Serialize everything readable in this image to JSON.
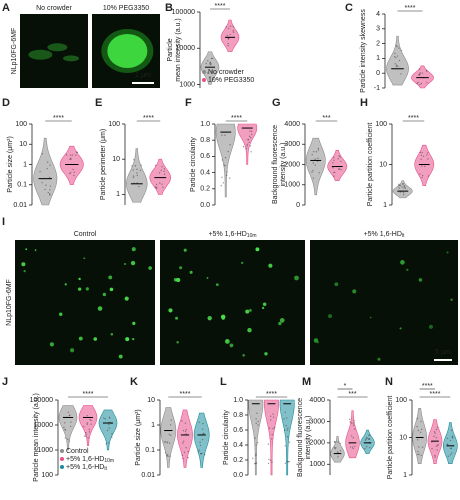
{
  "chart_data": [
    {
      "type": "image",
      "label": "A",
      "side_label": "NLp10FG-6MF",
      "captions": [
        {
          "text": "No crowder"
        },
        {
          "text": "10% PEG3350"
        }
      ],
      "scale_bar": "1 μm"
    },
    {
      "type": "violin",
      "label": "B",
      "ylabel": [
        "Particle",
        "mean intensity (a.u.)"
      ],
      "log": true,
      "ylim": [
        800,
        100000
      ],
      "yticks": [
        1000,
        10000,
        100000
      ],
      "significance": [
        "****"
      ],
      "groups": [
        {
          "name": "No crowder",
          "color": "#8c8c8c",
          "min": 1000,
          "median": 3000,
          "max": 8000
        },
        {
          "name": "10% PEG3350",
          "color": "#e8508a",
          "min": 8000,
          "median": 20000,
          "max": 60000
        }
      ]
    },
    {
      "type": "violin",
      "label": "C",
      "ylabel": [
        "Particle intensity skewness"
      ],
      "log": false,
      "ylim": [
        -1,
        4
      ],
      "yticks": [
        -1,
        0,
        1,
        2,
        3,
        4
      ],
      "significance": [
        "****"
      ],
      "groups": [
        {
          "color": "#8c8c8c",
          "min": -0.8,
          "median": 0.3,
          "max": 2.5
        },
        {
          "color": "#e8508a",
          "min": -1,
          "median": -0.3,
          "max": 0.5
        }
      ]
    },
    {
      "type": "violin",
      "label": "D",
      "ylabel": [
        "Particle size (μm²)"
      ],
      "log": true,
      "ylim": [
        0.01,
        100
      ],
      "yticks": [
        0.01,
        0.1,
        1,
        10,
        100
      ],
      "significance": [
        "****"
      ],
      "groups": [
        {
          "color": "#8c8c8c",
          "min": 0.01,
          "median": 0.2,
          "max": 20
        },
        {
          "color": "#e8508a",
          "min": 0.1,
          "median": 1,
          "max": 8
        }
      ]
    },
    {
      "type": "violin",
      "label": "E",
      "ylabel": [
        "Particle perimeter (μm)"
      ],
      "log": true,
      "ylim": [
        0.5,
        100
      ],
      "yticks": [
        1,
        10,
        100
      ],
      "significance": [
        "****"
      ],
      "groups": [
        {
          "color": "#8c8c8c",
          "min": 0.6,
          "median": 2,
          "max": 20
        },
        {
          "color": "#e8508a",
          "min": 1,
          "median": 3,
          "max": 10
        }
      ]
    },
    {
      "type": "violin",
      "label": "F",
      "ylabel": [
        "Particle circularity"
      ],
      "log": false,
      "ylim": [
        0,
        1
      ],
      "yticks": [
        {
          "value": 0,
          "label": "0.0"
        },
        0.2,
        0.4,
        0.6,
        0.8,
        {
          "value": 1,
          "label": "1.0"
        }
      ],
      "significance": [
        "****"
      ],
      "groups": [
        {
          "color": "#8c8c8c",
          "min": 0.1,
          "median": 0.9,
          "max": 1
        },
        {
          "color": "#e8508a",
          "min": 0.5,
          "median": 0.95,
          "max": 1
        }
      ]
    },
    {
      "type": "violin",
      "label": "G",
      "ylabel": [
        "Background fluorescence",
        "intensity (a.u.)"
      ],
      "log": false,
      "ylim": [
        0,
        4000
      ],
      "yticks": [
        0,
        1000,
        2000,
        3000,
        4000
      ],
      "significance": [
        "***"
      ],
      "groups": [
        {
          "color": "#8c8c8c",
          "min": 500,
          "median": 2200,
          "max": 3300
        },
        {
          "color": "#e8508a",
          "min": 1200,
          "median": 1900,
          "max": 2700
        }
      ]
    },
    {
      "type": "violin",
      "label": "H",
      "ylabel": [
        "Particle partition coefficient"
      ],
      "log": true,
      "ylim": [
        1,
        100
      ],
      "yticks": [
        1,
        10,
        100
      ],
      "significance": [
        "****"
      ],
      "groups": [
        {
          "color": "#8c8c8c",
          "min": 1.5,
          "median": 2.2,
          "max": 4
        },
        {
          "color": "#e8508a",
          "min": 3,
          "median": 10,
          "max": 30
        }
      ]
    },
    {
      "type": "image",
      "label": "I",
      "side_label": "NLp10FG-6MF",
      "captions": [
        {
          "text": "Control"
        },
        {
          "text": "+5% 1,6-HD",
          "sub": "10m"
        },
        {
          "text": "+5% 1,6-HD",
          "sub": "lt"
        }
      ],
      "scale_bar": "5 μm"
    },
    {
      "type": "violin",
      "label": "J",
      "ylabel": [
        "Particle mean intensity (a.u.)"
      ],
      "log": true,
      "ylim": [
        100,
        100000
      ],
      "yticks": [
        100,
        1000,
        10000,
        100000
      ],
      "significance": [
        "****"
      ],
      "groups": [
        {
          "name": "Control",
          "color": "#8c8c8c",
          "min": 1000,
          "median": 20000,
          "max": 60000
        },
        {
          "name": "+5% 1,6-HD",
          "sub": "10m",
          "color": "#e8508a",
          "min": 1500,
          "median": 20000,
          "max": 60000
        },
        {
          "name": "+5% 1,6-HD",
          "sub": "lt",
          "color": "#1b8c9c",
          "min": 1000,
          "median": 12000,
          "max": 40000
        }
      ]
    },
    {
      "type": "violin",
      "label": "K",
      "ylabel": [
        "Particle size (μm²)"
      ],
      "log": true,
      "ylim": [
        0.01,
        10
      ],
      "yticks": [
        0.01,
        0.1,
        1,
        10
      ],
      "significance": [
        "****"
      ],
      "groups": [
        {
          "color": "#8c8c8c",
          "min": 0.02,
          "median": 0.6,
          "max": 5
        },
        {
          "color": "#e8508a",
          "min": 0.02,
          "median": 0.4,
          "max": 4
        },
        {
          "color": "#1b8c9c",
          "min": 0.02,
          "median": 0.4,
          "max": 3
        }
      ]
    },
    {
      "type": "violin",
      "label": "L",
      "ylabel": [
        "Particle circularity"
      ],
      "log": false,
      "ylim": [
        0,
        1
      ],
      "yticks": [
        {
          "value": 0,
          "label": "0.0"
        },
        0.2,
        0.4,
        0.6,
        0.8,
        {
          "value": 1,
          "label": "1.0"
        }
      ],
      "significance": [
        "****"
      ],
      "groups": [
        {
          "color": "#8c8c8c",
          "min": 0,
          "median": 0.95,
          "max": 1
        },
        {
          "color": "#e8508a",
          "min": 0,
          "median": 0.95,
          "max": 1
        },
        {
          "color": "#1b8c9c",
          "min": 0,
          "median": 0.95,
          "max": 1
        }
      ]
    },
    {
      "type": "violin",
      "label": "M",
      "ylabel": [
        "Background fluorescence",
        "intensity (a.u.)"
      ],
      "log": false,
      "ylim": [
        500,
        4000
      ],
      "yticks": [
        1000,
        2000,
        3000,
        4000
      ],
      "significance": [
        "***",
        "*"
      ],
      "groups": [
        {
          "color": "#8c8c8c",
          "min": 1100,
          "median": 1500,
          "max": 2300
        },
        {
          "color": "#e8508a",
          "min": 1300,
          "median": 2000,
          "max": 3500
        },
        {
          "color": "#1b8c9c",
          "min": 1500,
          "median": 2000,
          "max": 2600
        }
      ]
    },
    {
      "type": "violin",
      "label": "N",
      "ylabel": [
        "Particle partition coefficient"
      ],
      "log": true,
      "ylim": [
        1,
        100
      ],
      "yticks": [
        1,
        10,
        100
      ],
      "significance": [
        "****",
        "****"
      ],
      "groups": [
        {
          "color": "#8c8c8c",
          "min": 2,
          "median": 10,
          "max": 60
        },
        {
          "color": "#e8508a",
          "min": 2,
          "median": 8,
          "max": 30
        },
        {
          "color": "#1b8c9c",
          "min": 2,
          "median": 6,
          "max": 25
        }
      ]
    }
  ]
}
